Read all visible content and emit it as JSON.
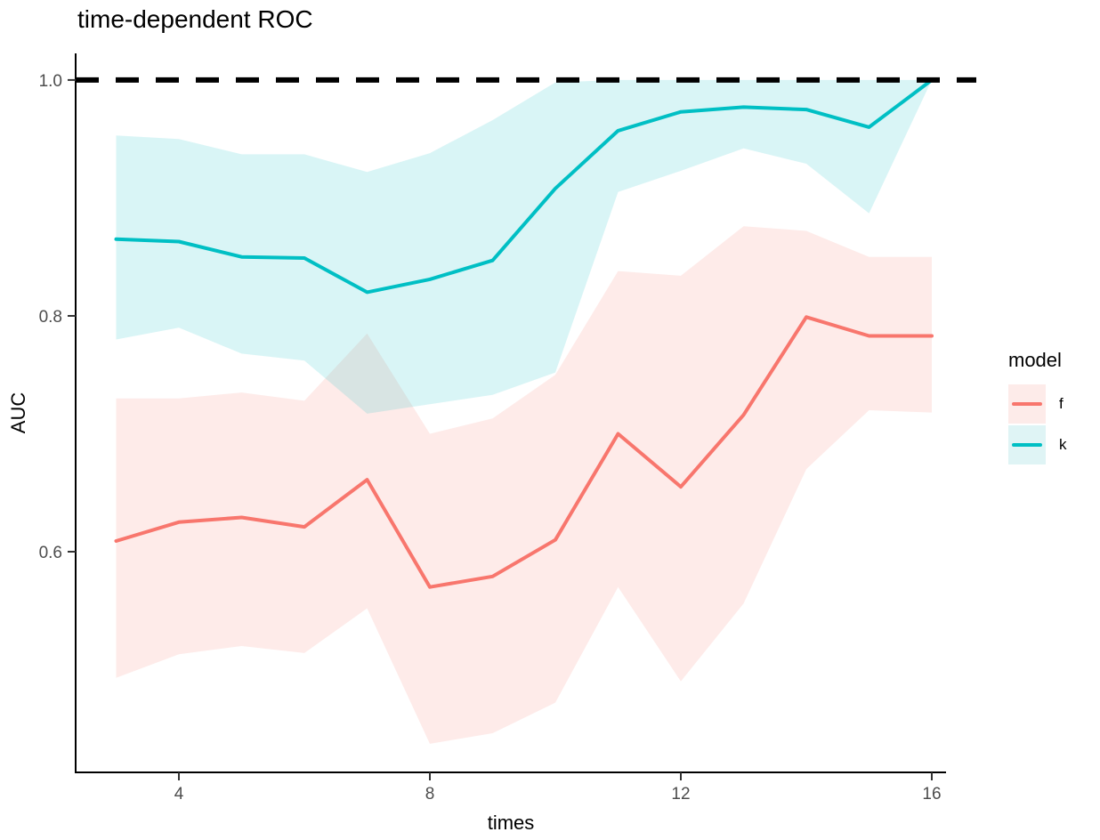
{
  "title": "time-dependent ROC",
  "axes": {
    "x": {
      "label": "times",
      "tick_labels": [
        "4",
        "8",
        "12",
        "16"
      ],
      "tick_values": [
        4,
        8,
        12,
        16
      ]
    },
    "y": {
      "label": "AUC",
      "tick_labels": [
        "1.0",
        "0.8",
        "0.6"
      ],
      "tick_values": [
        1.0,
        0.8,
        0.6
      ]
    }
  },
  "legend": {
    "title": "model",
    "entries": [
      {
        "label": "f",
        "color": "#F8766D",
        "fill": "#FDEBE9"
      },
      {
        "label": "k",
        "color": "#00BFC4",
        "fill": "#DFF4F5"
      }
    ]
  },
  "reference_line": {
    "y": 1.0,
    "style": "dashed",
    "color": "#000000"
  },
  "colors": {
    "axis_line": "#000000",
    "tick_mark": "#333333",
    "tick_label": "#4D4D4D",
    "ribbon_opacity": 0.15
  },
  "chart_data": {
    "type": "line",
    "title": "time-dependent ROC",
    "xlabel": "times",
    "ylabel": "AUC",
    "x": [
      3,
      4,
      5,
      6,
      7,
      8,
      9,
      10,
      11,
      12,
      13,
      14,
      15,
      16
    ],
    "series": [
      {
        "name": "f",
        "color": "#F8766D",
        "values": [
          0.609,
          0.625,
          0.629,
          0.621,
          0.661,
          0.57,
          0.579,
          0.61,
          0.7,
          0.655,
          0.716,
          0.799,
          0.783,
          0.783
        ],
        "ribbon_upper": [
          0.73,
          0.73,
          0.735,
          0.728,
          0.785,
          0.7,
          0.713,
          0.75,
          0.838,
          0.834,
          0.876,
          0.872,
          0.85,
          0.85
        ],
        "ribbon_lower": [
          0.493,
          0.513,
          0.52,
          0.514,
          0.552,
          0.437,
          0.446,
          0.472,
          0.57,
          0.49,
          0.556,
          0.67,
          0.72,
          0.718
        ]
      },
      {
        "name": "k",
        "color": "#00BFC4",
        "values": [
          0.865,
          0.863,
          0.85,
          0.849,
          0.82,
          0.831,
          0.847,
          0.908,
          0.957,
          0.973,
          0.977,
          0.975,
          0.96,
          1.0
        ],
        "ribbon_upper": [
          0.953,
          0.95,
          0.937,
          0.937,
          0.922,
          0.938,
          0.966,
          0.998,
          1.0,
          1.0,
          1.0,
          1.0,
          1.0,
          1.0
        ],
        "ribbon_lower": [
          0.78,
          0.79,
          0.768,
          0.762,
          0.717,
          0.725,
          0.733,
          0.752,
          0.905,
          0.923,
          0.942,
          0.929,
          0.887,
          1.0
        ]
      }
    ],
    "x_ticks": [
      4,
      8,
      12,
      16
    ],
    "y_ticks": [
      1.0,
      0.8,
      0.6
    ],
    "xlim": [
      2.355,
      16.227
    ],
    "ylim": [
      0.4128,
      1.0226
    ],
    "reference_line_y": 1.0,
    "grid": false,
    "legend_position": "right"
  }
}
